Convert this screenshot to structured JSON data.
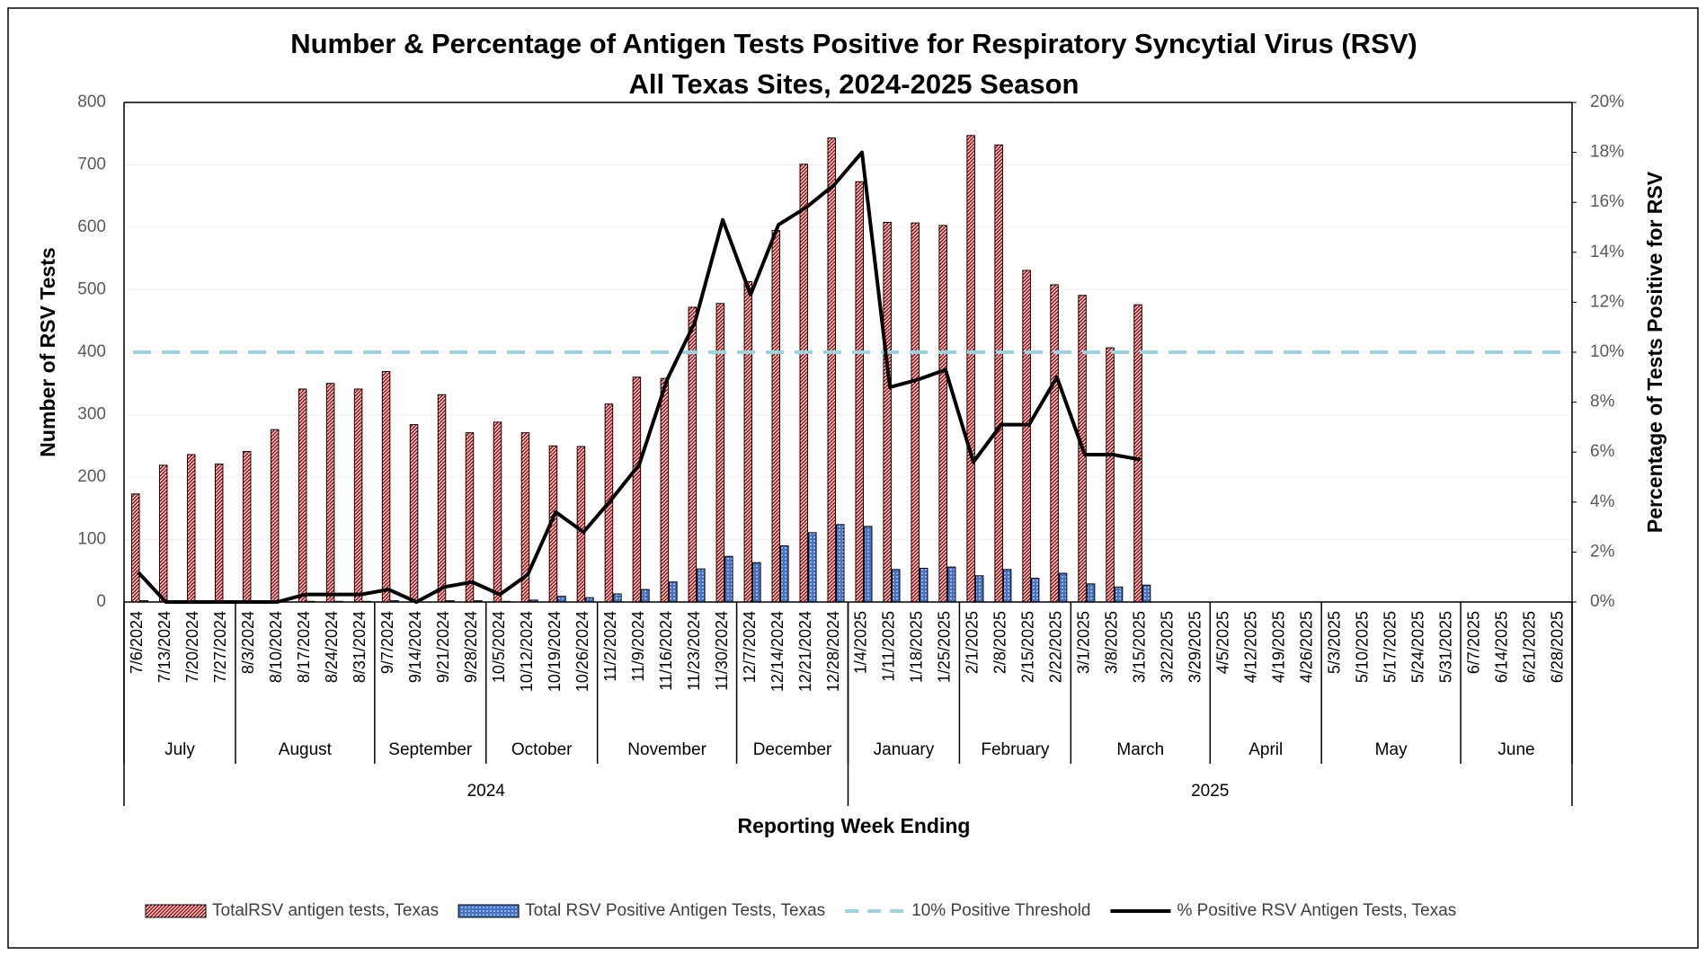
{
  "chart_data": {
    "type": "bar-line",
    "title": "Number & Percentage of Antigen Tests Positive for Respiratory Syncytial Virus (RSV)",
    "subtitle": "All Texas Sites, 2024-2025 Season",
    "x_label": "Reporting Week Ending",
    "y_label": "Number of RSV Tests",
    "y2_label": "Percentage of Tests Positive for RSV",
    "categories": [
      "7/6/2024",
      "7/13/2024",
      "7/20/2024",
      "7/27/2024",
      "8/3/2024",
      "8/10/2024",
      "8/17/2024",
      "8/24/2024",
      "8/31/2024",
      "9/7/2024",
      "9/14/2024",
      "9/21/2024",
      "9/28/2024",
      "10/5/2024",
      "10/12/2024",
      "10/19/2024",
      "10/26/2024",
      "11/2/2024",
      "11/9/2024",
      "11/16/2024",
      "11/23/2024",
      "11/30/2024",
      "12/7/2024",
      "12/14/2024",
      "12/21/2024",
      "12/28/2024",
      "1/4/2025",
      "1/11/2025",
      "1/18/2025",
      "1/25/2025",
      "2/1/2025",
      "2/8/2025",
      "2/15/2025",
      "2/22/2025",
      "3/1/2025",
      "3/8/2025",
      "3/15/2025",
      "3/22/2025",
      "3/29/2025",
      "4/5/2025",
      "4/12/2025",
      "4/19/2025",
      "4/26/2025",
      "5/3/2025",
      "5/10/2025",
      "5/17/2025",
      "5/24/2025",
      "5/31/2025",
      "6/7/2025",
      "6/14/2025",
      "6/21/2025",
      "6/28/2025"
    ],
    "months": [
      "July",
      "August",
      "September",
      "October",
      "November",
      "December",
      "January",
      "February",
      "March",
      "April",
      "May",
      "June"
    ],
    "years": [
      "2024",
      "2025"
    ],
    "series": [
      {
        "name": "TotalRSV antigen tests, Texas",
        "type": "bar",
        "color": "#c00000",
        "values": [
          173,
          219,
          236,
          221,
          241,
          276,
          341,
          350,
          341,
          369,
          284,
          332,
          271,
          288,
          271,
          250,
          249,
          317,
          360,
          358,
          472,
          478,
          513,
          595,
          701,
          743,
          673,
          608,
          607,
          603,
          747,
          732,
          531,
          508,
          491,
          407,
          476,
          null,
          null,
          null,
          null,
          null,
          null,
          null,
          null,
          null,
          null,
          null,
          null,
          null,
          null,
          null
        ]
      },
      {
        "name": "Total RSV Positive Antigen Tests, Texas",
        "type": "bar",
        "color": "#4472c4",
        "values": [
          2,
          0,
          0,
          0,
          0,
          0,
          1,
          1,
          1,
          2,
          0,
          2,
          2,
          1,
          3,
          9,
          7,
          13,
          20,
          32,
          53,
          73,
          63,
          90,
          111,
          124,
          121,
          52,
          54,
          56,
          42,
          52,
          38,
          46,
          29,
          24,
          27,
          null,
          null,
          null,
          null,
          null,
          null,
          null,
          null,
          null,
          null,
          null,
          null,
          null,
          null,
          null
        ]
      },
      {
        "name": "% Positive RSV Antigen Tests, Texas",
        "type": "line",
        "axis": "y2",
        "color": "#000000",
        "values": [
          1.2,
          0,
          0,
          0,
          0,
          0,
          0.3,
          0.3,
          0.3,
          0.5,
          0,
          0.6,
          0.8,
          0.3,
          1.1,
          3.6,
          2.8,
          4.1,
          5.5,
          8.9,
          11.2,
          15.3,
          12.3,
          15.1,
          15.8,
          16.7,
          18.0,
          8.6,
          8.9,
          9.3,
          5.6,
          7.1,
          7.1,
          9.0,
          5.9,
          5.9,
          5.7,
          null,
          null,
          null,
          null,
          null,
          null,
          null,
          null,
          null,
          null,
          null,
          null,
          null,
          null,
          null
        ]
      }
    ],
    "threshold": {
      "name": "10% Positive Threshold",
      "axis": "y2",
      "color": "#9dd3df",
      "value": 10
    },
    "ylim": [
      0,
      800
    ],
    "yticks": [
      0,
      100,
      200,
      300,
      400,
      500,
      600,
      700,
      800
    ],
    "y2lim": [
      0,
      20
    ],
    "y2ticks": [
      {
        "value": 0,
        "label": "0%"
      },
      {
        "value": 2,
        "label": "2%"
      },
      {
        "value": 4,
        "label": "4%"
      },
      {
        "value": 6,
        "label": "6%"
      },
      {
        "value": 8,
        "label": "8%"
      },
      {
        "value": 10,
        "label": "10%"
      },
      {
        "value": 12,
        "label": "12%"
      },
      {
        "value": 14,
        "label": "14%"
      },
      {
        "value": 16,
        "label": "16%"
      },
      {
        "value": 18,
        "label": "18%"
      },
      {
        "value": 20,
        "label": "20%"
      }
    ],
    "grid": true,
    "legend": "bottom"
  }
}
